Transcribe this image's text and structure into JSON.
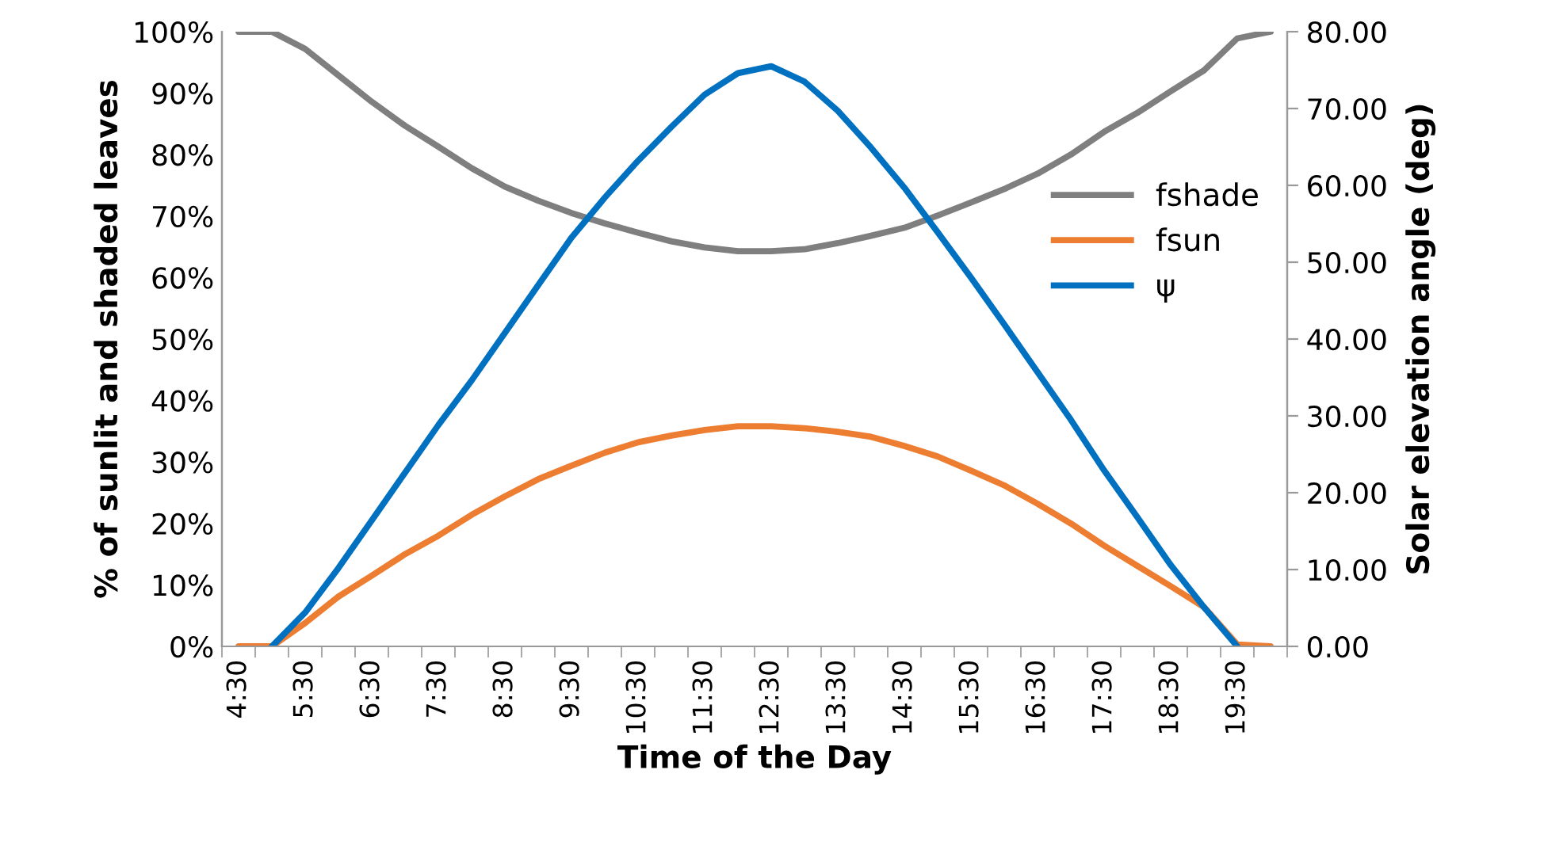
{
  "chart_data": {
    "type": "line",
    "xlabel": "Time of the Day",
    "ylabel": "% of sunlit and shaded leaves",
    "y2label": "Solar elevation angle (deg)",
    "categories": [
      "4:30",
      null,
      "5:30",
      null,
      "6:30",
      null,
      "7:30",
      null,
      "8:30",
      null,
      "9:30",
      null,
      "10:30",
      null,
      "11:30",
      null,
      "12:30",
      null,
      "13:30",
      null,
      "14:30",
      null,
      "15:30",
      null,
      "16:30",
      null,
      "17:30",
      null,
      "18:30",
      null,
      "19:30",
      null
    ],
    "series": [
      {
        "name": "fshade",
        "color": "#7f7f7f",
        "values": [
          100,
          100,
          97.2,
          92.9,
          88.6,
          84.7,
          81.3,
          77.8,
          74.8,
          72.5,
          70.5,
          68.8,
          67.3,
          65.9,
          64.9,
          64.3,
          64.3,
          64.6,
          65.6,
          66.8,
          68.1,
          70.1,
          72.2,
          74.4,
          76.9,
          80.0,
          83.7,
          86.8,
          90.3,
          93.7,
          98.9,
          100
        ]
      },
      {
        "name": "fsun",
        "color": "#ed7d31",
        "values": [
          0,
          0,
          3.8,
          8.1,
          11.5,
          15.0,
          18.0,
          21.4,
          24.4,
          27.2,
          29.4,
          31.5,
          33.2,
          34.3,
          35.2,
          35.8,
          35.8,
          35.5,
          34.9,
          34.1,
          32.6,
          30.9,
          28.6,
          26.2,
          23.2,
          20.0,
          16.4,
          13.1,
          9.8,
          6.4,
          0.3,
          0
        ]
      },
      {
        "name": "ψ",
        "color": "#0070c0",
        "axis": "y2",
        "values": [
          null,
          0,
          4.4,
          10.2,
          16.4,
          22.6,
          28.8,
          34.6,
          40.8,
          47.0,
          53.2,
          58.4,
          63.2,
          67.6,
          71.8,
          74.6,
          75.5,
          73.5,
          69.7,
          64.9,
          59.7,
          53.9,
          48.0,
          41.9,
          35.7,
          29.5,
          22.9,
          16.8,
          10.6,
          5.1,
          0,
          null
        ]
      }
    ],
    "ylim": [
      0,
      100
    ],
    "yticks": [
      {
        "value": 0,
        "label": "0%"
      },
      {
        "value": 10,
        "label": "10%"
      },
      {
        "value": 20,
        "label": "20%"
      },
      {
        "value": 30,
        "label": "30%"
      },
      {
        "value": 40,
        "label": "40%"
      },
      {
        "value": 50,
        "label": "50%"
      },
      {
        "value": 60,
        "label": "60%"
      },
      {
        "value": 70,
        "label": "70%"
      },
      {
        "value": 80,
        "label": "80%"
      },
      {
        "value": 90,
        "label": "90%"
      },
      {
        "value": 100,
        "label": "100%"
      }
    ],
    "y2lim": [
      0,
      80
    ],
    "y2ticks": [
      {
        "value": 0,
        "label": "0.00"
      },
      {
        "value": 10,
        "label": "10.00"
      },
      {
        "value": 20,
        "label": "20.00"
      },
      {
        "value": 30,
        "label": "30.00"
      },
      {
        "value": 40,
        "label": "40.00"
      },
      {
        "value": 50,
        "label": "50.00"
      },
      {
        "value": 60,
        "label": "60.00"
      },
      {
        "value": 70,
        "label": "70.00"
      },
      {
        "value": 80,
        "label": "80.00"
      }
    ],
    "grid": false,
    "legend": "top right",
    "marker": "none",
    "line_style": "solid"
  }
}
